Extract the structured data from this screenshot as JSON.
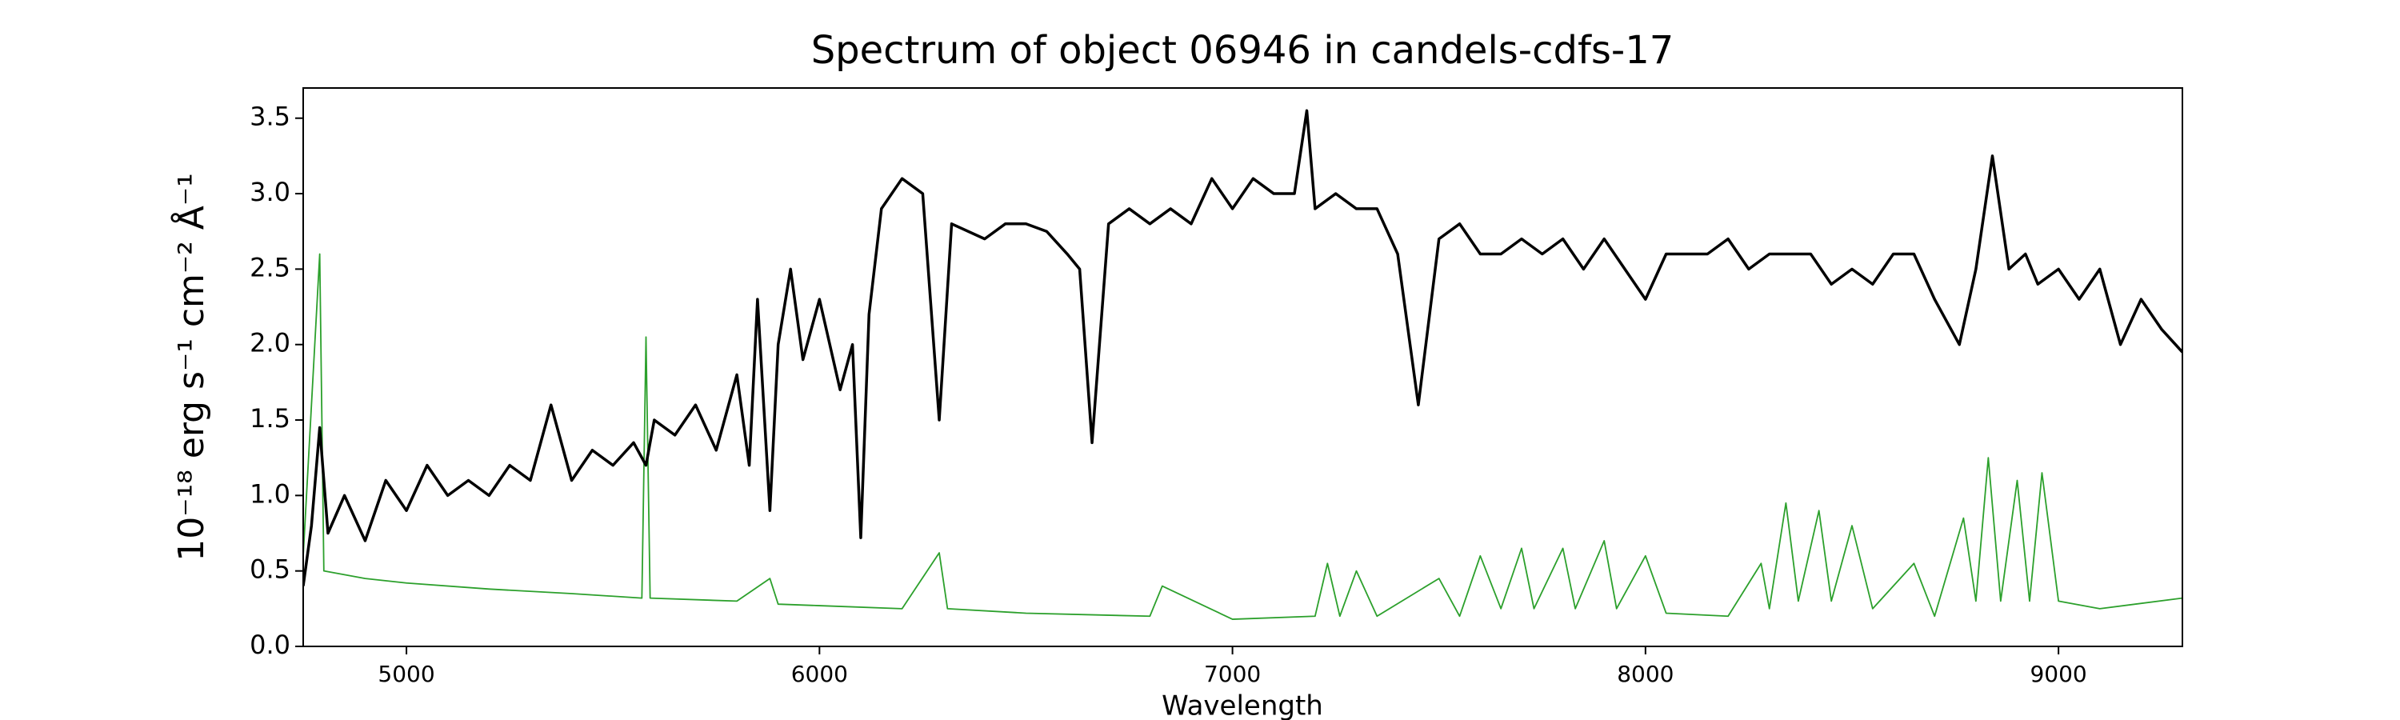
{
  "chart_data": {
    "type": "line",
    "title": "Spectrum of object 06946 in candels-cdfs-17",
    "x_label": "Wavelength",
    "y_label": "10⁻¹⁸ erg s⁻¹ cm⁻² Å⁻¹",
    "xlim": [
      4750,
      9300
    ],
    "ylim": [
      0,
      3.7
    ],
    "xticks": [
      5000,
      6000,
      7000,
      8000,
      9000
    ],
    "yticks": [
      {
        "value": 0,
        "label": "0.0"
      },
      0.5,
      {
        "value": 1,
        "label": "1.0"
      },
      1.5,
      {
        "value": 2,
        "label": "2.0"
      },
      2.5,
      {
        "value": 3,
        "label": "3.0"
      },
      3.5
    ],
    "series": [
      {
        "color": "#2ca02c",
        "x": [
          4750,
          4790,
          4800,
          4900,
          5000,
          5200,
          5400,
          5570,
          5580,
          5590,
          5800,
          5880,
          5900,
          6000,
          6200,
          6290,
          6310,
          6500,
          6800,
          6830,
          7000,
          7200,
          7230,
          7260,
          7300,
          7350,
          7500,
          7550,
          7600,
          7650,
          7700,
          7730,
          7800,
          7830,
          7900,
          7930,
          8000,
          8050,
          8200,
          8280,
          8300,
          8340,
          8370,
          8420,
          8450,
          8500,
          8550,
          8650,
          8700,
          8770,
          8800,
          8830,
          8860,
          8900,
          8930,
          8960,
          9000,
          9100,
          9300
        ],
        "values": [
          0.6,
          2.6,
          0.5,
          0.45,
          0.42,
          0.38,
          0.35,
          0.32,
          2.05,
          0.32,
          0.3,
          0.45,
          0.28,
          0.27,
          0.25,
          0.62,
          0.25,
          0.22,
          0.2,
          0.4,
          0.18,
          0.2,
          0.55,
          0.2,
          0.5,
          0.2,
          0.45,
          0.2,
          0.6,
          0.25,
          0.65,
          0.25,
          0.65,
          0.25,
          0.7,
          0.25,
          0.6,
          0.22,
          0.2,
          0.55,
          0.25,
          0.95,
          0.3,
          0.9,
          0.3,
          0.8,
          0.25,
          0.55,
          0.2,
          0.85,
          0.3,
          1.25,
          0.3,
          1.1,
          0.3,
          1.15,
          0.3,
          0.25,
          0.32
        ]
      },
      {
        "color": "#000000",
        "x": [
          4750,
          4770,
          4790,
          4810,
          4850,
          4900,
          4950,
          5000,
          5050,
          5100,
          5150,
          5200,
          5250,
          5300,
          5350,
          5400,
          5450,
          5500,
          5550,
          5580,
          5600,
          5650,
          5700,
          5750,
          5800,
          5830,
          5850,
          5880,
          5900,
          5930,
          5960,
          6000,
          6050,
          6080,
          6100,
          6120,
          6150,
          6200,
          6250,
          6290,
          6320,
          6400,
          6450,
          6500,
          6550,
          6600,
          6630,
          6660,
          6700,
          6750,
          6800,
          6850,
          6900,
          6950,
          7000,
          7050,
          7100,
          7150,
          7180,
          7200,
          7250,
          7300,
          7350,
          7400,
          7450,
          7500,
          7550,
          7600,
          7650,
          7700,
          7750,
          7800,
          7850,
          7900,
          7950,
          8000,
          8050,
          8100,
          8150,
          8200,
          8250,
          8300,
          8350,
          8400,
          8450,
          8500,
          8550,
          8600,
          8650,
          8700,
          8760,
          8800,
          8840,
          8880,
          8920,
          8950,
          9000,
          9050,
          9100,
          9150,
          9200,
          9250,
          9300
        ],
        "values": [
          0.4,
          0.8,
          1.45,
          0.75,
          1.0,
          0.7,
          1.1,
          0.9,
          1.2,
          1.0,
          1.1,
          1.0,
          1.2,
          1.1,
          1.6,
          1.1,
          1.3,
          1.2,
          1.35,
          1.2,
          1.5,
          1.4,
          1.6,
          1.3,
          1.8,
          1.2,
          2.3,
          0.9,
          2.0,
          2.5,
          1.9,
          2.3,
          1.7,
          2.0,
          0.72,
          2.2,
          2.9,
          3.1,
          3.0,
          1.5,
          2.8,
          2.7,
          2.8,
          2.8,
          2.75,
          2.6,
          2.5,
          1.35,
          2.8,
          2.9,
          2.8,
          2.9,
          2.8,
          3.1,
          2.9,
          3.1,
          3.0,
          3.0,
          3.55,
          2.9,
          3.0,
          2.9,
          2.9,
          2.6,
          1.6,
          2.7,
          2.8,
          2.6,
          2.6,
          2.7,
          2.6,
          2.7,
          2.5,
          2.7,
          2.5,
          2.3,
          2.6,
          2.6,
          2.6,
          2.7,
          2.5,
          2.6,
          2.6,
          2.6,
          2.4,
          2.5,
          2.4,
          2.6,
          2.6,
          2.3,
          2.0,
          2.5,
          3.25,
          2.5,
          2.6,
          2.4,
          2.5,
          2.3,
          2.5,
          2.0,
          2.3,
          2.1,
          1.95
        ]
      },
      {
        "color": "#0000cc",
        "x": [
          4750,
          9300
        ],
        "values": [
          0,
          0
        ]
      }
    ]
  }
}
